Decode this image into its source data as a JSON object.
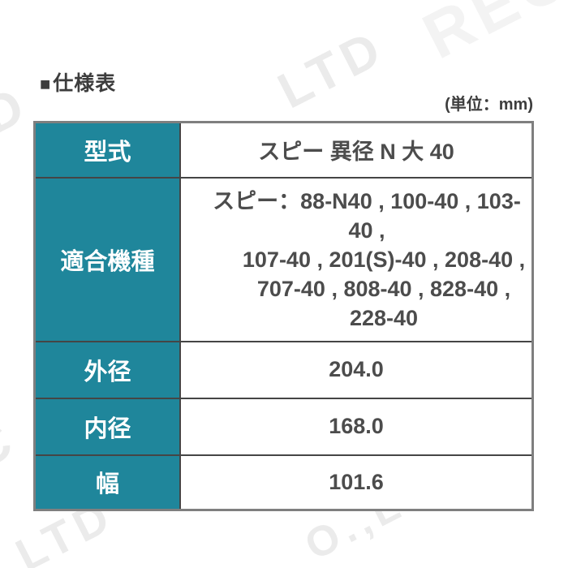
{
  "page": {
    "title_bullet": "■",
    "title_text": "仕様表",
    "unit_label": "(単位：mm)"
  },
  "table": {
    "rows": [
      {
        "header": "型式",
        "value": "スピー 異径 N 大 40"
      },
      {
        "header": "適合機種",
        "lines": [
          "スピー：88-N40 , 100-40 , 103-40 ,",
          "107-40 , 201(S)-40 , 208-40 ,",
          "707-40 , 808-40 , 828-40 ,",
          "228-40"
        ]
      },
      {
        "header": "外径",
        "value": "204.0"
      },
      {
        "header": "内径",
        "value": "168.0"
      },
      {
        "header": "幅",
        "value": "101.6"
      }
    ]
  },
  "watermark": {
    "fragments": {
      "top_rec": "REC",
      "top_ltd": "LTD",
      "bottom_oltd": "O.,LTD",
      "left_td": "TD",
      "left_o": "O",
      "left_c": "C",
      "bottom_ltd": "LTD"
    }
  },
  "colors": {
    "header_bg": "#1f869b",
    "header_text": "#ffffff",
    "border_outer": "#7f7f7f",
    "border_inner": "#454545",
    "value_text": "#4c4c4c",
    "title_text": "#3d3d3d",
    "watermark": "#ebebeb"
  }
}
